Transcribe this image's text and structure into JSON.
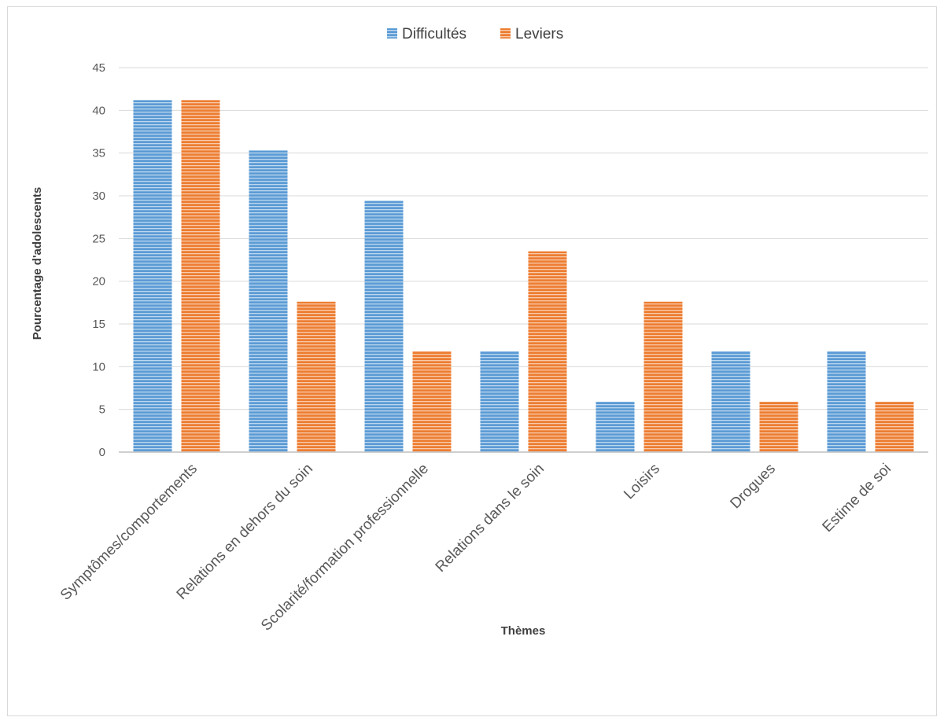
{
  "chart_data": {
    "type": "bar",
    "title": "",
    "xlabel": "Thèmes",
    "ylabel": "Pourcentage d'adolescents",
    "ylim": [
      0,
      45
    ],
    "yticks": [
      0,
      5,
      10,
      15,
      20,
      25,
      30,
      35,
      40,
      45
    ],
    "grid": true,
    "legend_position": "top",
    "categories": [
      "Symptômes/comportements",
      "Relations en dehors du soin",
      "Scolarité/formation professionnelle",
      "Relations dans le soin",
      "Loisirs",
      "Drogues",
      "Estime de soi"
    ],
    "series": [
      {
        "name": "Difficultés",
        "color": "#5b9bd5",
        "values": [
          41.2,
          35.3,
          29.4,
          11.8,
          5.9,
          11.8,
          11.8
        ]
      },
      {
        "name": "Leviers",
        "color": "#ed7d31",
        "values": [
          41.2,
          17.6,
          11.8,
          23.5,
          17.6,
          5.9,
          5.9
        ]
      }
    ]
  }
}
